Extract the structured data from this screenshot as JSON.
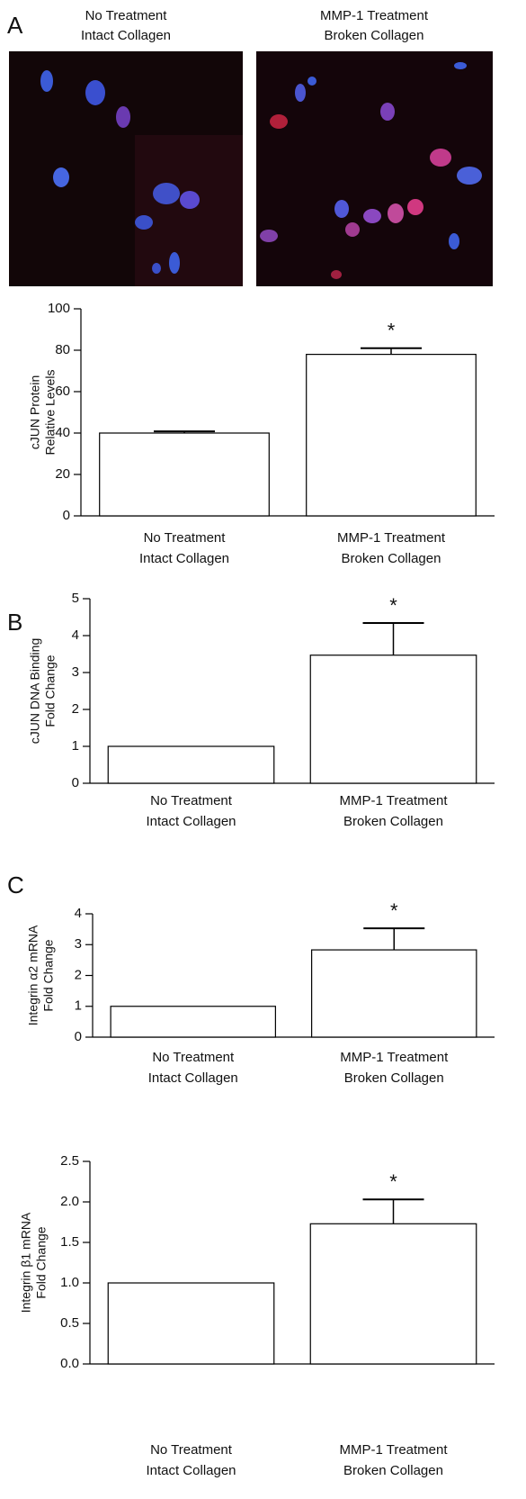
{
  "panel_labels": [
    "A",
    "B",
    "C"
  ],
  "images": [
    {
      "caption": [
        "No Treatment",
        "Intact Collagen"
      ]
    },
    {
      "caption": [
        "MMP-1 Treatment",
        "Broken Collagen"
      ]
    }
  ],
  "chart_data": [
    {
      "type": "bar",
      "y_label": [
        "cJUN Protein",
        "Relative Levels"
      ],
      "categories": [
        [
          "No Treatment",
          "Intact Collagen"
        ],
        [
          "MMP-1 Treatment",
          "Broken Collagen"
        ]
      ],
      "values": [
        40,
        78
      ],
      "errors": [
        0.8,
        3
      ],
      "significance": [
        null,
        "*"
      ],
      "color": "#ffffff",
      "ylim": [
        0,
        100
      ],
      "yticks": [
        0,
        20,
        40,
        60,
        80,
        100
      ]
    },
    {
      "type": "bar",
      "y_label": [
        "cJUN DNA Binding",
        "Fold Change"
      ],
      "categories": [
        [
          "No Treatment",
          "Intact Collagen"
        ],
        [
          "MMP-1 Treatment",
          "Broken Collagen"
        ]
      ],
      "values": [
        1,
        3.47
      ],
      "errors": [
        null,
        0.87
      ],
      "significance": [
        null,
        "*"
      ],
      "color": "#ffffff",
      "ylim": [
        0,
        5
      ],
      "yticks": [
        0,
        1,
        2,
        3,
        4,
        5
      ]
    },
    {
      "type": "bar",
      "y_label": [
        "Integrin α2 mRNA",
        "Fold Change"
      ],
      "categories": [
        [
          "No Treatment",
          "Intact Collagen"
        ],
        [
          "MMP-1 Treatment",
          "Broken Collagen"
        ]
      ],
      "values": [
        1,
        2.83
      ],
      "errors": [
        null,
        0.7
      ],
      "significance": [
        null,
        "*"
      ],
      "color": "#ffffff",
      "ylim": [
        0,
        4
      ],
      "yticks": [
        0,
        1,
        2,
        3,
        4
      ]
    },
    {
      "type": "bar",
      "y_label": [
        "Integrin β1 mRNA",
        "Fold Change"
      ],
      "categories": [
        [
          "No Treatment",
          "Intact Collagen"
        ],
        [
          "MMP-1 Treatment",
          "Broken Collagen"
        ]
      ],
      "values": [
        1.0,
        1.73
      ],
      "errors": [
        null,
        0.3
      ],
      "significance": [
        null,
        "*"
      ],
      "color": "#ffffff",
      "ylim": [
        0,
        2.5
      ],
      "yticks": [
        {
          "value": 0,
          "label": "0.0"
        },
        {
          "value": 0.5,
          "label": "0.5"
        },
        {
          "value": 1,
          "label": "1.0"
        },
        {
          "value": 1.5,
          "label": "1.5"
        },
        {
          "value": 2,
          "label": "2.0"
        },
        {
          "value": 2.5,
          "label": "2.5"
        }
      ]
    }
  ]
}
